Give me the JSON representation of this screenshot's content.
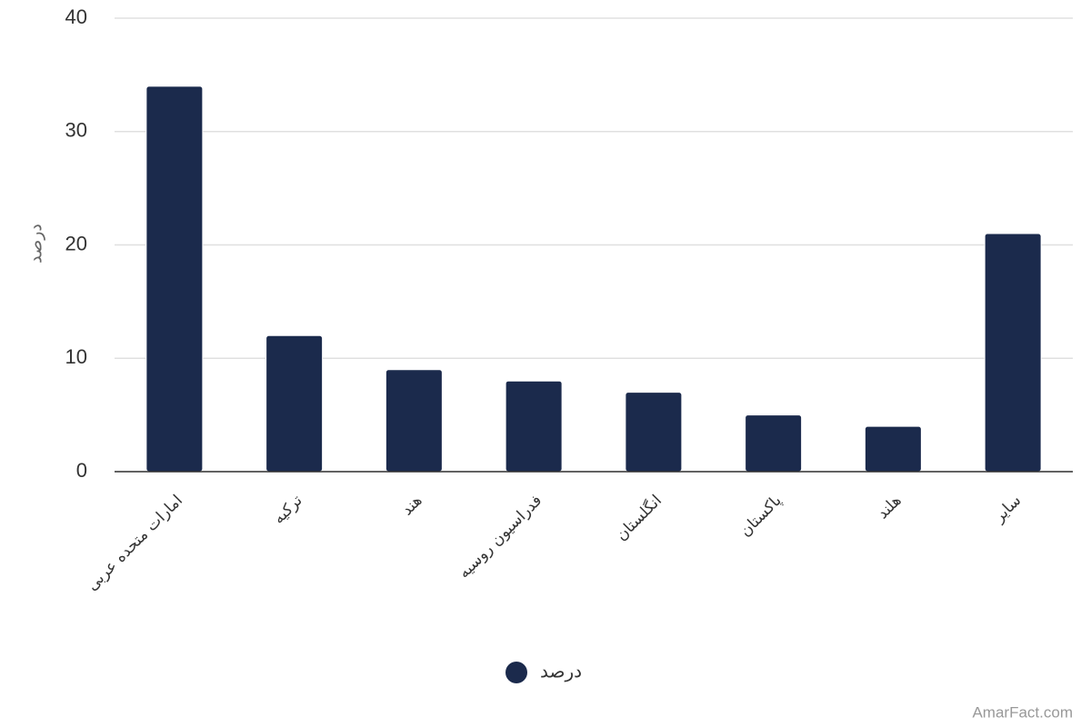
{
  "chart_data": {
    "type": "bar",
    "y_label": "درصد",
    "categories": [
      "امارات متحده عربی",
      "ترکیه",
      "هند",
      "فدراسیون روسیه",
      "انگلستان",
      "پاکستان",
      "هلند",
      "سایر"
    ],
    "series": [
      {
        "name": "درصد",
        "color": "#1b2a4c",
        "values": [
          34,
          12,
          9,
          8,
          7,
          5,
          4,
          21
        ]
      }
    ],
    "ylim": [
      0,
      40
    ],
    "yticks": [
      0,
      10,
      20,
      30,
      40
    ],
    "grid": true,
    "credit": "AmarFact.com"
  }
}
